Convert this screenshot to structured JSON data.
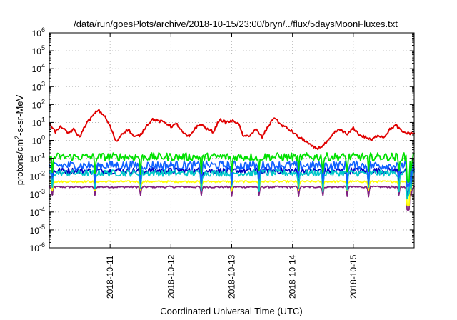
{
  "chart_data": {
    "type": "line",
    "title": "/data/run/goesPlots/archive/2018-10-15/23:00/bryn/../flux/5daysMoonFluxes.txt",
    "xlabel": "Coordinated Universal Time (UTC)",
    "ylabel": "protons/cm²-s-sr-MeV",
    "y_scale": "log",
    "ylim_exp": [
      -6,
      6
    ],
    "y_tick_labels": [
      {
        "base": "10",
        "exp": "-6"
      },
      {
        "base": "10",
        "exp": "-5"
      },
      {
        "base": "10",
        "exp": "-4"
      },
      {
        "base": "10",
        "exp": "-3"
      },
      {
        "base": "10",
        "exp": "-2"
      },
      {
        "base": "10",
        "exp": "-1"
      },
      {
        "base": "10",
        "exp": "0"
      },
      {
        "base": "10",
        "exp": "1"
      },
      {
        "base": "10",
        "exp": "2"
      },
      {
        "base": "10",
        "exp": "3"
      },
      {
        "base": "10",
        "exp": "4"
      },
      {
        "base": "10",
        "exp": "5"
      },
      {
        "base": "10",
        "exp": "6"
      }
    ],
    "xlim": [
      "2018-10-10T00:00",
      "2018-10-16T00:00"
    ],
    "x_ticks": [
      "2018-10-11",
      "2018-10-12",
      "2018-10-13",
      "2018-10-14",
      "2018-10-15"
    ],
    "grid": true,
    "series": [
      {
        "color": "#e00000",
        "x_days": [
          0.0,
          0.1,
          0.2,
          0.3,
          0.4,
          0.5,
          0.6,
          0.7,
          0.8,
          0.9,
          1.0,
          1.1,
          1.2,
          1.3,
          1.4,
          1.5,
          1.6,
          1.7,
          1.8,
          1.9,
          2.0,
          2.1,
          2.2,
          2.3,
          2.4,
          2.5,
          2.6,
          2.7,
          2.8,
          2.9,
          3.0,
          3.1,
          3.2,
          3.3,
          3.4,
          3.5,
          3.6,
          3.7,
          3.8,
          3.9,
          4.0,
          4.1,
          4.2,
          4.3,
          4.4,
          4.5,
          4.6,
          4.7,
          4.8,
          4.9,
          5.0,
          5.1,
          5.2,
          5.3,
          5.4,
          5.5,
          5.6,
          5.7,
          5.8,
          5.9,
          6.0
        ],
        "values": [
          10,
          3,
          6,
          2.5,
          4,
          1.5,
          8,
          20,
          50,
          25,
          6,
          0.8,
          2.5,
          4,
          1.5,
          2,
          7,
          15,
          12,
          10,
          6,
          8,
          2.5,
          1.5,
          5,
          8,
          4,
          3,
          15,
          10,
          12,
          10,
          1.5,
          2,
          4,
          1.5,
          6,
          20,
          8,
          5,
          3,
          1.5,
          1.0,
          0.5,
          0.35,
          0.5,
          1.0,
          3,
          4,
          2,
          5,
          2,
          1.5,
          1.0,
          2,
          1.5,
          4,
          7,
          3,
          2.5,
          2.5
        ]
      },
      {
        "color": "#00e000",
        "base": 0.12,
        "noise": 0.45
      },
      {
        "color": "#1060ff",
        "base": 0.04,
        "noise": 0.5
      },
      {
        "color": "#00c8c8",
        "base": 0.015,
        "noise": 0.35
      },
      {
        "color": "#0000c0",
        "base": 0.02,
        "noise": 0.35
      },
      {
        "color": "#ffff00",
        "base": 0.005,
        "noise": 0.1
      },
      {
        "color": "#802080",
        "base": 0.0025,
        "noise": 0.1
      }
    ],
    "dips_days": [
      0.05,
      0.75,
      1.5,
      2.5,
      3.0,
      3.45,
      4.1,
      4.5,
      4.9,
      5.25,
      5.75,
      5.95
    ]
  }
}
